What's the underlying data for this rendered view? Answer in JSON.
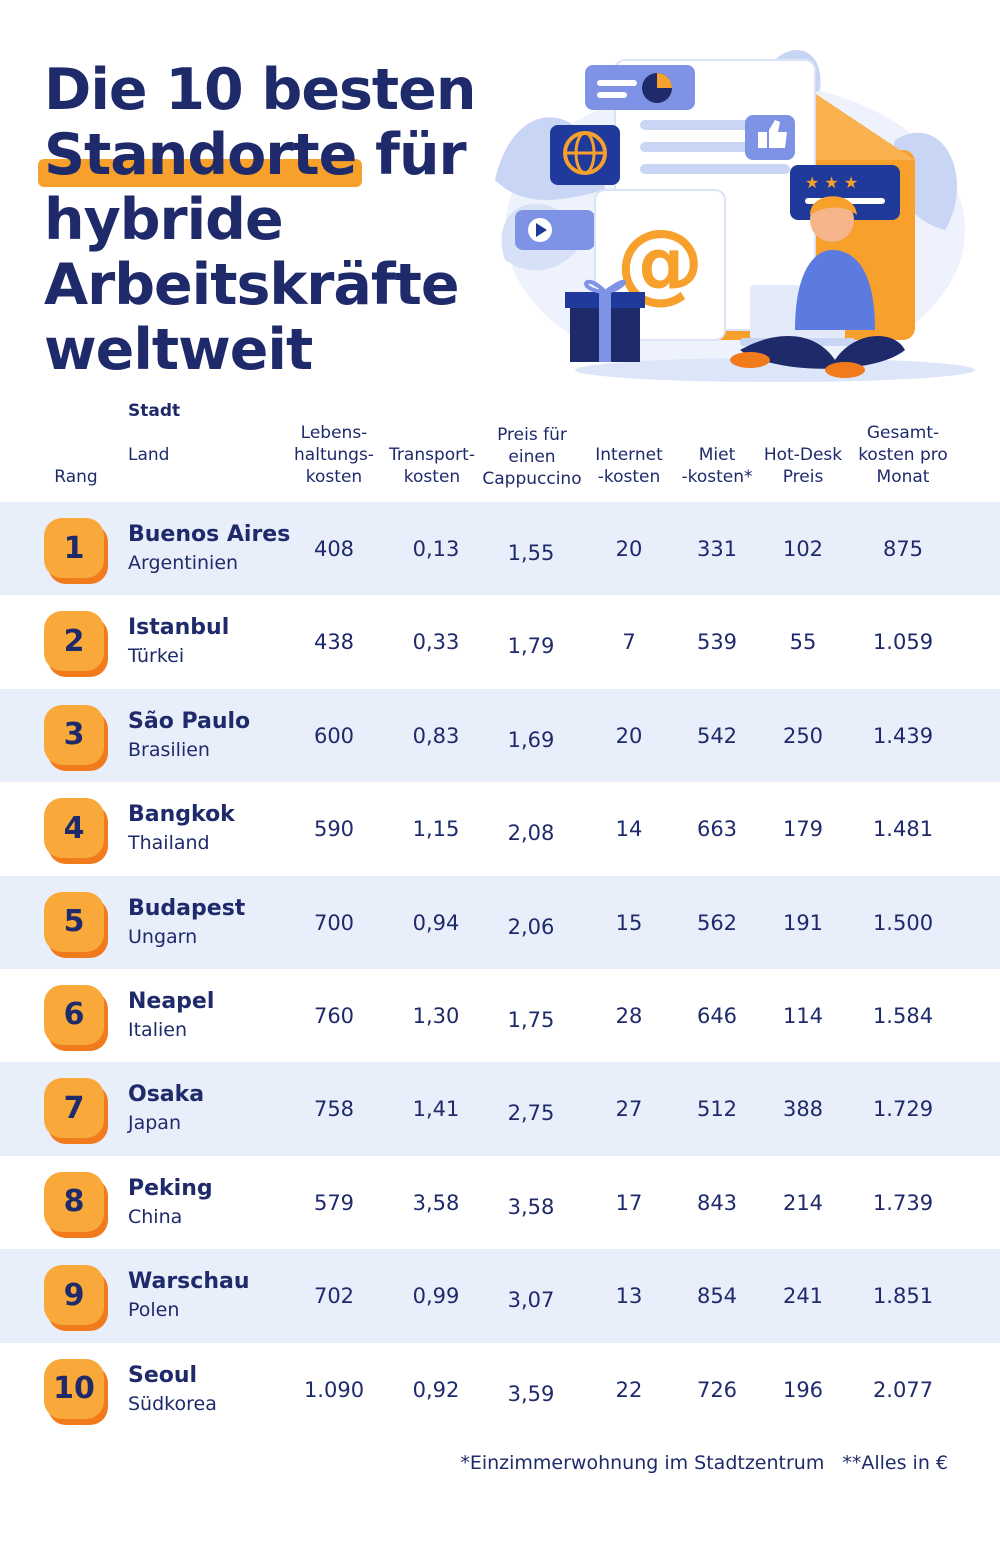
{
  "title": {
    "line1": "Die 10 besten",
    "line2_highlight": "Standorte",
    "line2_rest": " für",
    "line3": "hybride",
    "line4": "Arbeitskräfte",
    "line5": "weltweit"
  },
  "colors": {
    "navy": "#1f2a6b",
    "orange": "#f9a93a",
    "orange_dark": "#f07a1c",
    "row_shade": "#e8eefa"
  },
  "illustration": {
    "icons": [
      "globe-icon",
      "at-sign-icon",
      "thumbs-up-icon",
      "star-icon",
      "play-icon",
      "gift-icon",
      "envelope-icon",
      "chart-icon",
      "laptop-icon",
      "person-icon"
    ]
  },
  "headers": {
    "rank": "Rang",
    "city": "Stadt",
    "country": "Land",
    "living": "Lebens-\nhaltungs-\nkosten",
    "transport": "Transport-\nkosten",
    "cappuccino": "Preis für\neinen\nCappuccino",
    "internet": "Internet\n-kosten",
    "rent": "Miet\n-kosten*",
    "hotdesk": "Hot-Desk\nPreis",
    "total": "Gesamt-\nkosten pro\nMonat"
  },
  "rows": [
    {
      "rank": "1",
      "city": "Buenos Aires",
      "country": "Argentinien",
      "living": "408",
      "transport": "0,13",
      "cappuccino": "1,55",
      "internet": "20",
      "rent": "331",
      "hotdesk": "102",
      "total": "875"
    },
    {
      "rank": "2",
      "city": "Istanbul",
      "country": "Türkei",
      "living": "438",
      "transport": "0,33",
      "cappuccino": "1,79",
      "internet": "7",
      "rent": "539",
      "hotdesk": "55",
      "total": "1.059"
    },
    {
      "rank": "3",
      "city": "São Paulo",
      "country": "Brasilien",
      "living": "600",
      "transport": "0,83",
      "cappuccino": "1,69",
      "internet": "20",
      "rent": "542",
      "hotdesk": "250",
      "total": "1.439"
    },
    {
      "rank": "4",
      "city": "Bangkok",
      "country": "Thailand",
      "living": "590",
      "transport": "1,15",
      "cappuccino": "2,08",
      "internet": "14",
      "rent": "663",
      "hotdesk": "179",
      "total": "1.481"
    },
    {
      "rank": "5",
      "city": "Budapest",
      "country": "Ungarn",
      "living": "700",
      "transport": "0,94",
      "cappuccino": "2,06",
      "internet": "15",
      "rent": "562",
      "hotdesk": "191",
      "total": "1.500"
    },
    {
      "rank": "6",
      "city": "Neapel",
      "country": "Italien",
      "living": "760",
      "transport": "1,30",
      "cappuccino": "1,75",
      "internet": "28",
      "rent": "646",
      "hotdesk": "114",
      "total": "1.584"
    },
    {
      "rank": "7",
      "city": "Osaka",
      "country": "Japan",
      "living": "758",
      "transport": "1,41",
      "cappuccino": "2,75",
      "internet": "27",
      "rent": "512",
      "hotdesk": "388",
      "total": "1.729"
    },
    {
      "rank": "8",
      "city": "Peking",
      "country": "China",
      "living": "579",
      "transport": "3,58",
      "cappuccino": "3,58",
      "internet": "17",
      "rent": "843",
      "hotdesk": "214",
      "total": "1.739"
    },
    {
      "rank": "9",
      "city": "Warschau",
      "country": "Polen",
      "living": "702",
      "transport": "0,99",
      "cappuccino": "3,07",
      "internet": "13",
      "rent": "854",
      "hotdesk": "241",
      "total": "1.851"
    },
    {
      "rank": "10",
      "city": "Seoul",
      "country": "Südkorea",
      "living": "1.090",
      "transport": "0,92",
      "cappuccino": "3,59",
      "internet": "22",
      "rent": "726",
      "hotdesk": "196",
      "total": "2.077"
    }
  ],
  "footnotes": {
    "rent_note": "*Einzimmerwohnung im Stadtzentrum",
    "currency_note": "**Alles in €"
  }
}
